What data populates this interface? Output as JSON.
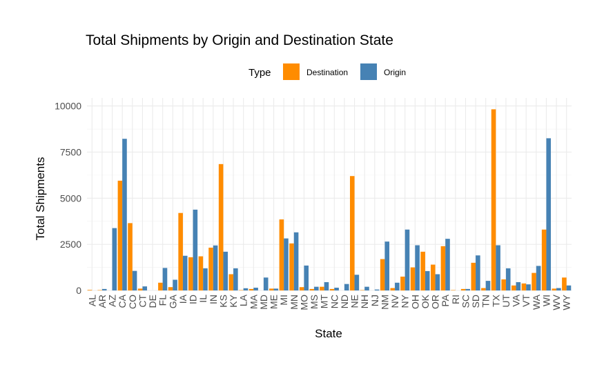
{
  "chart_data": {
    "type": "bar",
    "title": "Total Shipments by Origin and Destination State",
    "xlabel": "State",
    "ylabel": "Total Shipments",
    "ylim": [
      0,
      10000
    ],
    "yticks": [
      0,
      2500,
      5000,
      7500,
      10000
    ],
    "grid": true,
    "legend_position": "top",
    "legend_title": "Type",
    "categories": [
      "AL",
      "AR",
      "AZ",
      "CA",
      "CO",
      "CT",
      "DE",
      "FL",
      "GA",
      "IA",
      "ID",
      "IL",
      "IN",
      "KS",
      "KY",
      "LA",
      "MA",
      "MD",
      "ME",
      "MI",
      "MN",
      "MO",
      "MS",
      "MT",
      "NC",
      "ND",
      "NE",
      "NH",
      "NJ",
      "NM",
      "NV",
      "NY",
      "OH",
      "OK",
      "OR",
      "PA",
      "RI",
      "SC",
      "SD",
      "TN",
      "TX",
      "UT",
      "VA",
      "VT",
      "WA",
      "WI",
      "WV",
      "WY"
    ],
    "series": [
      {
        "name": "Destination",
        "color": "#FF8C00",
        "values": [
          30,
          20,
          0,
          5950,
          3650,
          100,
          0,
          420,
          180,
          4200,
          1800,
          1850,
          2320,
          6850,
          880,
          20,
          80,
          0,
          100,
          3850,
          2550,
          180,
          80,
          200,
          80,
          0,
          6200,
          20,
          0,
          1700,
          130,
          750,
          1250,
          2100,
          1400,
          2400,
          20,
          80,
          1500,
          130,
          9820,
          600,
          270,
          380,
          950,
          3300,
          100,
          700
        ]
      },
      {
        "name": "Origin",
        "color": "#4682B4",
        "values": [
          0,
          80,
          3380,
          8220,
          1060,
          220,
          0,
          1220,
          580,
          1880,
          4380,
          1200,
          2440,
          2100,
          1200,
          120,
          150,
          700,
          100,
          2820,
          3150,
          1350,
          200,
          450,
          150,
          350,
          850,
          200,
          50,
          2650,
          420,
          3300,
          2450,
          1050,
          880,
          2800,
          0,
          80,
          1900,
          520,
          2450,
          1200,
          450,
          330,
          1330,
          8250,
          130,
          270
        ]
      }
    ]
  }
}
